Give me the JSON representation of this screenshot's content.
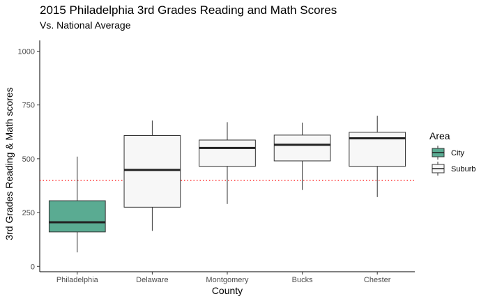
{
  "chart_data": {
    "type": "boxplot",
    "title": "2015 Philadelphia 3rd Grades Reading and Math Scores",
    "subtitle": "Vs. National Average",
    "xlabel": "County",
    "ylabel": "3rd Grades Reading & Math scores",
    "ylim": [
      -25,
      1050
    ],
    "yticks": [
      0,
      250,
      500,
      750,
      1000
    ],
    "grid": false,
    "categories": [
      "Philadelphia",
      "Delaware",
      "Montgomery",
      "Bucks",
      "Chester"
    ],
    "boxes": [
      {
        "category": "Philadelphia",
        "group": "City",
        "min": 65,
        "q1": 160,
        "median": 205,
        "q3": 305,
        "max": 510
      },
      {
        "category": "Delaware",
        "group": "Suburb",
        "min": 165,
        "q1": 275,
        "median": 448,
        "q3": 608,
        "max": 678
      },
      {
        "category": "Montgomery",
        "group": "Suburb",
        "min": 290,
        "q1": 465,
        "median": 550,
        "q3": 587,
        "max": 670
      },
      {
        "category": "Bucks",
        "group": "Suburb",
        "min": 355,
        "q1": 490,
        "median": 565,
        "q3": 610,
        "max": 668
      },
      {
        "category": "Chester",
        "group": "Suburb",
        "min": 322,
        "q1": 465,
        "median": 595,
        "q3": 623,
        "max": 700
      }
    ],
    "reference_line": {
      "value": 400,
      "color": "#ff0000",
      "style": "dotted"
    },
    "legend": {
      "title": "Area",
      "position": "right",
      "entries": [
        {
          "label": "City",
          "color": "#5aab92"
        },
        {
          "label": "Suburb",
          "color": "#f7f7f7"
        }
      ]
    }
  }
}
